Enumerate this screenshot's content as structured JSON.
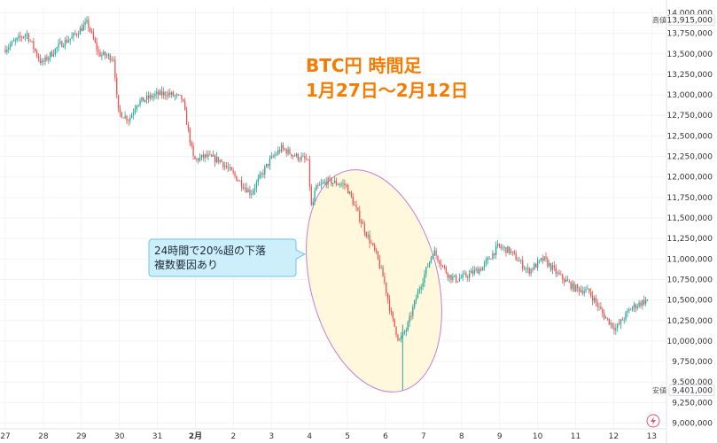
{
  "chart_data": {
    "type": "candlestick",
    "title_lines": [
      "BTC円 時間足",
      "1月27日〜2月12日"
    ],
    "annotation": {
      "lines": [
        "24時間で20%超の下落",
        "複数要因あり"
      ]
    },
    "y_ticks": [
      9000000,
      9250000,
      9500000,
      9750000,
      10000000,
      10250000,
      10500000,
      10750000,
      11000000,
      11250000,
      11500000,
      11750000,
      12000000,
      12250000,
      12500000,
      12750000,
      13000000,
      13250000,
      13500000,
      13750000,
      14000000
    ],
    "y_tick_labels": [
      "9,000,000",
      "9,250,000",
      "9,500,000",
      "9,750,000",
      "10,000,000",
      "10,250,000",
      "10,500,000",
      "10,750,000",
      "11,000,000",
      "11,250,000",
      "11,500,000",
      "11,750,000",
      "12,000,000",
      "12,250,000",
      "12,500,000",
      "12,750,000",
      "13,000,000",
      "13,250,000",
      "13,500,000",
      "13,750,000",
      "14,000,000"
    ],
    "ylim": [
      8930000,
      14070000
    ],
    "x_ticks": [
      "27",
      "28",
      "29",
      "30",
      "31",
      "2月",
      "2",
      "3",
      "4",
      "5",
      "6",
      "7",
      "8",
      "9",
      "10",
      "11",
      "12",
      "13"
    ],
    "high_marker": {
      "label": "高値",
      "value_label": "13,915,000",
      "value": 13915000
    },
    "low_marker": {
      "label": "安値",
      "value_label": "9,401,000",
      "value": 9401000
    },
    "series": [
      {
        "anchors": [
          [
            0,
            13550000
          ],
          [
            0.6,
            13750000
          ],
          [
            1.0,
            13380000
          ],
          [
            1.5,
            13620000
          ],
          [
            1.8,
            13700000
          ],
          [
            2.2,
            13880000
          ],
          [
            2.5,
            13500000
          ],
          [
            2.9,
            13450000
          ],
          [
            3.0,
            12800000
          ],
          [
            3.3,
            12700000
          ],
          [
            3.5,
            12900000
          ],
          [
            4.0,
            13000000
          ],
          [
            4.3,
            13020000
          ],
          [
            4.7,
            12950000
          ],
          [
            5.0,
            12200000
          ],
          [
            5.3,
            12250000
          ],
          [
            5.7,
            12200000
          ],
          [
            6.0,
            12050000
          ],
          [
            6.5,
            11800000
          ],
          [
            7.0,
            12200000
          ],
          [
            7.3,
            12350000
          ],
          [
            7.7,
            12250000
          ],
          [
            8.0,
            12200000
          ],
          [
            8.1,
            11600000
          ],
          [
            8.2,
            11850000
          ],
          [
            8.5,
            11950000
          ],
          [
            9.0,
            11900000
          ],
          [
            9.5,
            11350000
          ],
          [
            9.8,
            11050000
          ],
          [
            10.0,
            10750000
          ],
          [
            10.2,
            10300000
          ],
          [
            10.4,
            10000000
          ],
          [
            10.6,
            10150000
          ],
          [
            10.9,
            10600000
          ],
          [
            11.3,
            11100000
          ],
          [
            11.7,
            10800000
          ],
          [
            11.9,
            10750000
          ],
          [
            12.2,
            10800000
          ],
          [
            12.6,
            10900000
          ],
          [
            13.0,
            11150000
          ],
          [
            13.3,
            11100000
          ],
          [
            13.8,
            10850000
          ],
          [
            14.2,
            11000000
          ],
          [
            14.6,
            10800000
          ],
          [
            15.0,
            10650000
          ],
          [
            15.4,
            10600000
          ],
          [
            15.8,
            10300000
          ],
          [
            16.1,
            10150000
          ],
          [
            16.5,
            10400000
          ],
          [
            16.9,
            10500000
          ]
        ],
        "spikes": [
          [
            10.45,
            9401000,
            10200000
          ]
        ]
      }
    ],
    "colors": {
      "up": "#26a69a",
      "down": "#ef5350",
      "highlight_fill": "#fff8dc",
      "highlight_stroke": "#c77dd8",
      "callout_fill": "#cdeefb",
      "callout_stroke": "#6ec6ea",
      "title": "#f57c00"
    }
  }
}
